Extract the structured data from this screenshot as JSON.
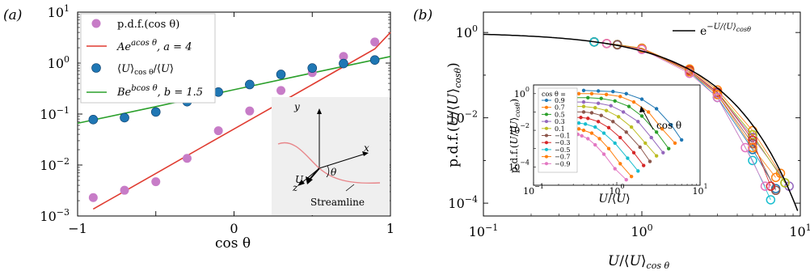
{
  "chart_data": [
    {
      "panel_label": "(a)",
      "type": "scatter",
      "xlabel": "cos θ",
      "ylabel": "",
      "xlim": [
        -1,
        1
      ],
      "ylim": [
        0.001,
        10
      ],
      "yscale": "log",
      "xticks": [
        "−1",
        "0",
        "1"
      ],
      "yticks": [
        {
          "base": "10",
          "exp": "−3"
        },
        {
          "base": "10",
          "exp": "−2"
        },
        {
          "base": "10",
          "exp": "−1"
        },
        {
          "base": "10",
          "exp": "0"
        },
        {
          "base": "10",
          "exp": "1"
        }
      ],
      "legend_position": "top-left",
      "series": [
        {
          "name": "p.d.f.(cos θ)",
          "kind": "points",
          "color": "#c77cc7",
          "x": [
            -0.9,
            -0.7,
            -0.5,
            -0.3,
            -0.1,
            0.1,
            0.3,
            0.5,
            0.7,
            0.9
          ],
          "y": [
            0.0023,
            0.0032,
            0.0047,
            0.0135,
            0.047,
            0.115,
            0.29,
            0.65,
            1.35,
            2.6
          ]
        },
        {
          "name": "Aeacos θ, a = 4",
          "kind": "line",
          "color": "#e03c31",
          "x": [
            -0.9,
            -0.7,
            -0.5,
            -0.3,
            -0.1,
            0.1,
            0.3,
            0.5,
            0.7,
            0.9,
            1.0
          ],
          "y": [
            0.00137,
            0.00306,
            0.00684,
            0.0153,
            0.0341,
            0.0763,
            0.17,
            0.38,
            0.849,
            1.895,
            4.0
          ]
        },
        {
          "name": "⟨U⟩cos θ/⟨U⟩",
          "kind": "points",
          "color": "#1f77b4",
          "x": [
            -0.9,
            -0.7,
            -0.5,
            -0.3,
            -0.1,
            0.1,
            0.3,
            0.5,
            0.7,
            0.9
          ],
          "y": [
            0.078,
            0.085,
            0.11,
            0.175,
            0.27,
            0.38,
            0.6,
            0.8,
            0.98,
            1.15
          ]
        },
        {
          "name": "Bebcos θ, b = 1.5",
          "kind": "line",
          "color": "#2ca02c",
          "x": [
            -1,
            -0.5,
            0,
            0.5,
            1
          ],
          "y": [
            0.066,
            0.14,
            0.3,
            0.64,
            1.35
          ]
        }
      ],
      "inset": {
        "labels": [
          "y",
          "x",
          "z",
          "U",
          "θ",
          "Streamline"
        ]
      }
    },
    {
      "panel_label": "(b)",
      "type": "scatter",
      "xlabel": "U/⟨U⟩cos θ",
      "ylabel": "p.d.f.(U/⟨U⟩cosθ)",
      "xlim": [
        0.1,
        10
      ],
      "ylim": [
        5e-05,
        3
      ],
      "xscale": "log",
      "yscale": "log",
      "xticks": [
        {
          "base": "10",
          "exp": "−1"
        },
        {
          "base": "10",
          "exp": "0"
        },
        {
          "base": "10",
          "exp": "1"
        }
      ],
      "yticks": [
        {
          "base": "10",
          "exp": "0"
        },
        {
          "base": "10",
          "exp": "−2"
        },
        {
          "base": "10",
          "exp": "−4"
        }
      ],
      "legend_position": "top-right",
      "reference_line": {
        "label": "e−U/⟨U⟩cosθ",
        "color": "#000000"
      },
      "series": [
        {
          "name": "0.9",
          "color": "#1f77b4",
          "x": [
            0.5,
            0.7,
            1,
            2,
            3,
            5,
            7
          ],
          "y": [
            0.6,
            0.52,
            0.42,
            0.12,
            0.03,
            0.0018,
            0.00022
          ]
        },
        {
          "name": "0.7",
          "color": "#ff7f0e",
          "x": [
            0.5,
            0.7,
            1,
            2,
            3,
            5,
            7.5
          ],
          "y": [
            0.6,
            0.52,
            0.43,
            0.14,
            0.045,
            0.005,
            0.0005
          ]
        },
        {
          "name": "0.5",
          "color": "#2ca02c",
          "x": [
            0.5,
            0.7,
            1,
            2,
            3,
            5,
            8
          ],
          "y": [
            0.6,
            0.52,
            0.42,
            0.13,
            0.04,
            0.004,
            0.0003
          ]
        },
        {
          "name": "0.3",
          "color": "#9467bd",
          "x": [
            0.5,
            0.7,
            1,
            2,
            3,
            5,
            8.5
          ],
          "y": [
            0.6,
            0.51,
            0.41,
            0.12,
            0.038,
            0.0035,
            0.00025
          ]
        },
        {
          "name": "0.1",
          "color": "#bcbd22",
          "x": [
            0.5,
            0.7,
            1,
            2,
            3,
            5,
            8
          ],
          "y": [
            0.6,
            0.52,
            0.42,
            0.13,
            0.04,
            0.004,
            0.0003
          ]
        },
        {
          "name": "−0.1",
          "color": "#8c564b",
          "x": [
            0.5,
            0.7,
            1,
            2,
            3,
            5,
            7
          ],
          "y": [
            0.6,
            0.52,
            0.41,
            0.12,
            0.035,
            0.0025,
            0.0002
          ]
        },
        {
          "name": "−0.3",
          "color": "#d62728",
          "x": [
            0.6,
            1,
            2,
            3,
            5,
            6.5
          ],
          "y": [
            0.55,
            0.42,
            0.13,
            0.04,
            0.003,
            0.00025
          ]
        },
        {
          "name": "−0.5",
          "color": "#17becf",
          "x": [
            0.5,
            1,
            2,
            3,
            5,
            6.5
          ],
          "y": [
            0.6,
            0.42,
            0.12,
            0.03,
            0.001,
            0.00012
          ]
        },
        {
          "name": "−0.7",
          "color": "#ff7f0e",
          "x": [
            0.6,
            1,
            2,
            3,
            5,
            7
          ],
          "y": [
            0.55,
            0.42,
            0.12,
            0.035,
            0.002,
            0.0004
          ]
        },
        {
          "name": "−0.9",
          "color": "#e377c2",
          "x": [
            0.6,
            1,
            2,
            3,
            4.5,
            6
          ],
          "y": [
            0.55,
            0.4,
            0.11,
            0.03,
            0.002,
            0.00025
          ]
        }
      ],
      "inset": {
        "type": "scatter",
        "xlabel": "U/⟨U⟩",
        "ylabel": "p.d.f.(U/⟨U⟩cosθ)",
        "xlim": [
          0.1,
          10
        ],
        "ylim": [
          1e-05,
          3
        ],
        "xticks": [
          {
            "base": "10",
            "exp": "−1"
          },
          {
            "base": "10",
            "exp": "0"
          },
          {
            "base": "10",
            "exp": "1"
          }
        ],
        "yticks": [
          {
            "base": "10",
            "exp": "0"
          },
          {
            "base": "10",
            "exp": "−2"
          },
          {
            "base": "10",
            "exp": "−4"
          }
        ],
        "legend_title": "cos θ =",
        "annotation": "cos θ",
        "series": [
          {
            "name": "0.9",
            "color": "#1f77b4",
            "x": [
              0.4,
              0.6,
              0.9,
              1.3,
              2,
              3,
              4.5,
              6
            ],
            "y": [
              1.5,
              1.4,
              1.3,
              1.0,
              0.5,
              0.15,
              0.02,
              0.003
            ]
          },
          {
            "name": "0.7",
            "color": "#ff7f0e",
            "x": [
              0.35,
              0.5,
              0.75,
              1.1,
              1.6,
              2.4,
              3.5,
              5
            ],
            "y": [
              1.0,
              1.0,
              0.9,
              0.7,
              0.35,
              0.1,
              0.012,
              0.002
            ]
          },
          {
            "name": "0.5",
            "color": "#2ca02c",
            "x": [
              0.3,
              0.45,
              0.65,
              0.95,
              1.4,
              2,
              3,
              4.2
            ],
            "y": [
              0.6,
              0.6,
              0.55,
              0.4,
              0.2,
              0.06,
              0.008,
              0.001
            ]
          },
          {
            "name": "0.3",
            "color": "#9467bd",
            "x": [
              0.3,
              0.4,
              0.6,
              0.85,
              1.2,
              1.8,
              2.6,
              3.6
            ],
            "y": [
              0.35,
              0.35,
              0.3,
              0.22,
              0.1,
              0.03,
              0.004,
              0.0006
            ]
          },
          {
            "name": "0.1",
            "color": "#bcbd22",
            "x": [
              0.3,
              0.4,
              0.55,
              0.75,
              1.05,
              1.5,
              2.2,
              3
            ],
            "y": [
              0.2,
              0.2,
              0.17,
              0.12,
              0.055,
              0.015,
              0.002,
              0.0004
            ]
          },
          {
            "name": "−0.1",
            "color": "#8c564b",
            "x": [
              0.3,
              0.4,
              0.5,
              0.65,
              0.9,
              1.3,
              1.9,
              2.5
            ],
            "y": [
              0.1,
              0.1,
              0.09,
              0.065,
              0.03,
              0.008,
              0.0012,
              0.0002
            ]
          },
          {
            "name": "−0.3",
            "color": "#d62728",
            "x": [
              0.3,
              0.37,
              0.45,
              0.6,
              0.8,
              1.1,
              1.6,
              2.1
            ],
            "y": [
              0.05,
              0.05,
              0.045,
              0.03,
              0.014,
              0.004,
              0.0006,
              0.00012
            ]
          },
          {
            "name": "−0.5",
            "color": "#17becf",
            "x": [
              0.3,
              0.35,
              0.42,
              0.55,
              0.7,
              0.95,
              1.35,
              1.8
            ],
            "y": [
              0.025,
              0.025,
              0.022,
              0.015,
              0.007,
              0.002,
              0.0003,
              6e-05
            ]
          },
          {
            "name": "−0.7",
            "color": "#ff7f0e",
            "x": [
              0.3,
              0.35,
              0.4,
              0.5,
              0.62,
              0.8,
              1.1,
              1.5
            ],
            "y": [
              0.012,
              0.012,
              0.01,
              0.007,
              0.0035,
              0.001,
              0.00015,
              3e-05
            ]
          },
          {
            "name": "−0.9",
            "color": "#e377c2",
            "x": [
              0.3,
              0.34,
              0.38,
              0.45,
              0.55,
              0.7,
              0.95,
              1.3
            ],
            "y": [
              0.006,
              0.006,
              0.005,
              0.0035,
              0.0016,
              0.0005,
              8e-05,
              2e-05
            ]
          }
        ]
      }
    }
  ]
}
